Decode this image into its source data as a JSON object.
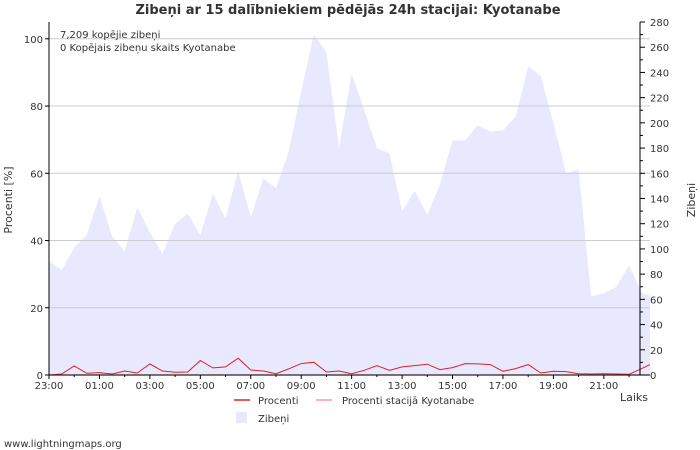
{
  "chart_data": {
    "type": "area",
    "title": "Zibeņi ar 15 dalībniekiem pēdējās 24h stacijai: Kyotanabe",
    "xlabel": "Laiks",
    "ylabel_left": "Procenti   [%]",
    "ylabel_right": "Zibeņi",
    "ylim_left": [
      0,
      105
    ],
    "ylim_right": [
      0,
      280
    ],
    "x_range_hours": [
      0,
      23.83
    ],
    "left_ticks": [
      {
        "v": 0,
        "label": "0"
      },
      {
        "v": 20,
        "label": "20"
      },
      {
        "v": 40,
        "label": "40"
      },
      {
        "v": 60,
        "label": "60"
      },
      {
        "v": 80,
        "label": "80"
      },
      {
        "v": 100,
        "label": "100"
      }
    ],
    "right_ticks": [
      {
        "v": 0,
        "label": "0"
      },
      {
        "v": 20,
        "label": "20"
      },
      {
        "v": 40,
        "label": "40"
      },
      {
        "v": 60,
        "label": "60"
      },
      {
        "v": 80,
        "label": "80"
      },
      {
        "v": 100,
        "label": "100"
      },
      {
        "v": 120,
        "label": "120"
      },
      {
        "v": 140,
        "label": "140"
      },
      {
        "v": 160,
        "label": "160"
      },
      {
        "v": 180,
        "label": "180"
      },
      {
        "v": 200,
        "label": "200"
      },
      {
        "v": 220,
        "label": "220"
      },
      {
        "v": 240,
        "label": "240"
      },
      {
        "v": 260,
        "label": "260"
      },
      {
        "v": 280,
        "label": "280"
      }
    ],
    "x_ticks": [
      {
        "h": 0,
        "label": "23:00"
      },
      {
        "h": 2,
        "label": "01:00"
      },
      {
        "h": 4,
        "label": "03:00"
      },
      {
        "h": 6,
        "label": "05:00"
      },
      {
        "h": 8,
        "label": "07:00"
      },
      {
        "h": 10,
        "label": "09:00"
      },
      {
        "h": 12,
        "label": "11:00"
      },
      {
        "h": 14,
        "label": "13:00"
      },
      {
        "h": 16,
        "label": "15:00"
      },
      {
        "h": 18,
        "label": "17:00"
      },
      {
        "h": 20,
        "label": "19:00"
      },
      {
        "h": 22,
        "label": "21:00"
      }
    ],
    "series": [
      {
        "name": "Zibeņi",
        "axis": "right",
        "style": "area",
        "color": "#e8e8ff",
        "hours": [
          0,
          0.5,
          1,
          1.5,
          2,
          2.5,
          3,
          3.5,
          4,
          4.5,
          5,
          5.5,
          6,
          6.5,
          7,
          7.5,
          8,
          8.5,
          9,
          9.5,
          10,
          10.5,
          11,
          11.5,
          12,
          12.5,
          13,
          13.5,
          14,
          14.5,
          15,
          15.5,
          16,
          16.5,
          17,
          17.5,
          18,
          18.5,
          19,
          19.5,
          20,
          20.5,
          21,
          21.5,
          22,
          22.5,
          23,
          23.5,
          23.83
        ],
        "values": [
          90,
          83,
          101,
          111,
          142,
          110,
          98,
          133,
          113,
          96,
          120,
          128,
          111,
          144,
          124,
          162,
          125,
          156,
          148,
          177,
          225,
          270,
          256,
          180,
          239,
          210,
          180,
          176,
          130,
          146,
          127,
          151,
          186,
          186,
          198,
          193,
          194,
          205,
          245,
          237,
          200,
          160,
          163,
          62,
          65,
          70,
          87,
          65,
          63
        ]
      },
      {
        "name": "Procenti",
        "axis": "left",
        "style": "line",
        "color": "#dd2222",
        "hours": [
          0,
          0.5,
          1,
          1.5,
          2,
          2.5,
          3,
          3.5,
          4,
          4.5,
          5,
          5.5,
          6,
          6.5,
          7,
          7.5,
          8,
          8.5,
          9,
          9.5,
          10,
          10.5,
          11,
          11.5,
          12,
          12.5,
          13,
          13.5,
          14,
          14.5,
          15,
          15.5,
          16,
          16.5,
          17,
          17.5,
          18,
          18.5,
          19,
          19.5,
          20,
          20.5,
          21,
          21.5,
          22,
          22.5,
          23,
          23.5,
          23.83
        ],
        "values": [
          0,
          0.3,
          2.7,
          0.5,
          0.7,
          0.3,
          1.2,
          0.6,
          3.3,
          1.2,
          0.8,
          0.9,
          4.3,
          2.1,
          2.4,
          5,
          1.5,
          1.2,
          0.4,
          1.8,
          3.4,
          3.8,
          0.9,
          1.2,
          0.4,
          1.4,
          2.8,
          1.4,
          2.4,
          2.8,
          3.2,
          1.6,
          2.2,
          3.4,
          3.3,
          3.1,
          1.1,
          1.9,
          3.1,
          0.6,
          1.1,
          1,
          0.4,
          0.3,
          0.4,
          0.3,
          0.2,
          1.9,
          3.1
        ]
      },
      {
        "name": "Procenti stacijā Kyotanabe",
        "axis": "left",
        "style": "line",
        "color": "#ff9999",
        "hours": [
          0,
          23.83
        ],
        "values": [
          0,
          0
        ]
      }
    ],
    "annotations": [
      "7,209 kopējie zibeņi",
      "0 Kopējais zibeņu skaits Kyotanabe"
    ],
    "legend": [
      "Procenti",
      "Procenti stacijā Kyotanabe",
      "Zibeņi"
    ],
    "legend_position": "bottom",
    "grid": true
  },
  "colors": {
    "area_fill": "#e8e8ff",
    "line_main": "#dd2222",
    "line_station": "#ff9999",
    "grid": "#cccccc",
    "axis": "#000000"
  },
  "footer": {
    "credit": "www.lightningmaps.org"
  }
}
